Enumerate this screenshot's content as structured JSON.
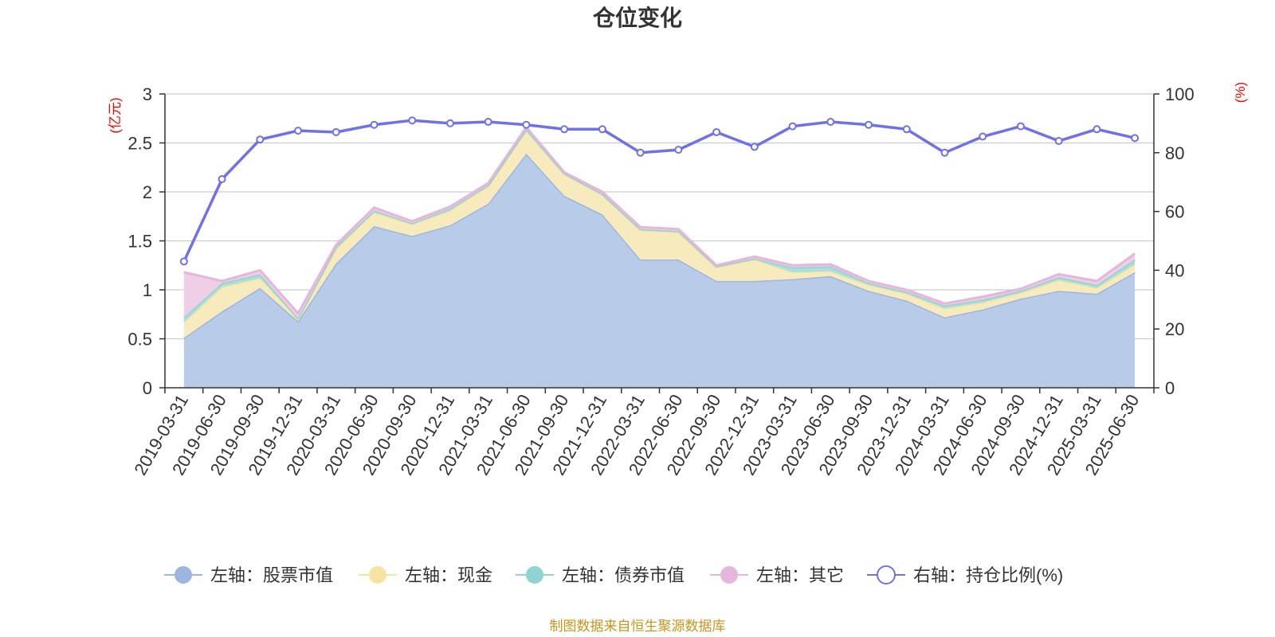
{
  "chart_data": {
    "type": "area",
    "title": "仓位变化",
    "source_note": "制图数据来自恒生聚源数据库",
    "left_axis": {
      "unit": "(亿元)",
      "ylim": [
        0,
        3
      ],
      "ticks": [
        "0",
        "0.5",
        "1",
        "1.5",
        "2",
        "2.5",
        "3"
      ]
    },
    "right_axis": {
      "unit": "(%)",
      "ylim": [
        0,
        100
      ],
      "ticks": [
        "0",
        "20",
        "40",
        "60",
        "80",
        "100"
      ]
    },
    "grid": true,
    "legend_position": "bottom",
    "categories": [
      "2019-03-31",
      "2019-06-30",
      "2019-09-30",
      "2019-12-31",
      "2020-03-31",
      "2020-06-30",
      "2020-09-30",
      "2020-12-31",
      "2021-03-31",
      "2021-06-30",
      "2021-09-30",
      "2021-12-31",
      "2022-03-31",
      "2022-06-30",
      "2022-09-30",
      "2022-12-31",
      "2023-03-31",
      "2023-06-30",
      "2023-09-30",
      "2023-12-31",
      "2024-03-31",
      "2024-06-30",
      "2024-09-30",
      "2024-12-31",
      "2025-03-31",
      "2025-06-30"
    ],
    "series": [
      {
        "name": "左轴：股票市值",
        "axis": "left",
        "kind": "stacked-area",
        "color": "#9db6e0",
        "fill": "#b8cbe9",
        "values": [
          0.51,
          0.78,
          1.02,
          0.68,
          1.27,
          1.65,
          1.55,
          1.66,
          1.88,
          2.39,
          1.96,
          1.77,
          1.31,
          1.31,
          1.09,
          1.09,
          1.11,
          1.14,
          0.99,
          0.89,
          0.72,
          0.8,
          0.91,
          0.99,
          0.96,
          1.18
        ]
      },
      {
        "name": "左轴：现金",
        "axis": "left",
        "kind": "stacked-area",
        "color": "#f6e3a0",
        "fill": "#f7ebbd",
        "values": [
          0.16,
          0.25,
          0.1,
          0.02,
          0.15,
          0.14,
          0.12,
          0.15,
          0.18,
          0.24,
          0.22,
          0.2,
          0.3,
          0.28,
          0.14,
          0.22,
          0.07,
          0.05,
          0.06,
          0.07,
          0.09,
          0.07,
          0.06,
          0.11,
          0.06,
          0.08
        ]
      },
      {
        "name": "左轴：债券市值",
        "axis": "left",
        "kind": "stacked-area",
        "color": "#8fd3d3",
        "fill": "#a9dede",
        "values": [
          0.05,
          0.04,
          0.04,
          0.01,
          0.02,
          0.02,
          0.01,
          0.02,
          0.01,
          0.01,
          0.01,
          0.01,
          0.01,
          0.01,
          0.01,
          0.01,
          0.05,
          0.05,
          0.02,
          0.02,
          0.03,
          0.03,
          0.02,
          0.03,
          0.03,
          0.05
        ]
      },
      {
        "name": "左轴：其它",
        "axis": "left",
        "kind": "stacked-area",
        "color": "#e6b6da",
        "fill": "#eecfe6",
        "values": [
          0.46,
          0.02,
          0.04,
          0.05,
          0.02,
          0.03,
          0.02,
          0.02,
          0.02,
          0.02,
          0.01,
          0.02,
          0.02,
          0.02,
          0.01,
          0.02,
          0.02,
          0.02,
          0.02,
          0.02,
          0.02,
          0.03,
          0.02,
          0.03,
          0.04,
          0.06
        ]
      },
      {
        "name": "右轴：持仓比例(%)",
        "axis": "right",
        "kind": "line",
        "color": "#7070e8",
        "values": [
          43,
          71,
          84.5,
          87.5,
          87,
          89.5,
          91,
          90,
          90.5,
          89.5,
          88,
          88,
          80,
          81,
          87,
          82,
          89,
          90.5,
          89.5,
          88,
          80,
          85.5,
          89,
          84,
          88,
          85
        ]
      }
    ]
  }
}
